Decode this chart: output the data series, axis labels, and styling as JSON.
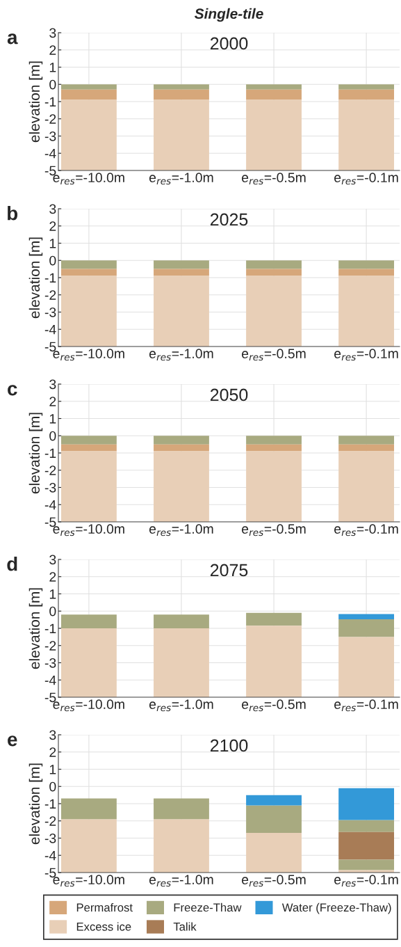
{
  "chart_data": [
    {
      "type": "bar",
      "title": "Single-tile",
      "subtitle": "2000",
      "annotations": [
        "a"
      ],
      "ylabel": "elevation [m]",
      "categories": [
        "e$_{res}$=-10.0m",
        "e$_{res}$=-1.0m",
        "e$_{res}$=-0.5m",
        "e$_{res}$=-0.1m"
      ],
      "ylim": [
        -5,
        3
      ],
      "yticks": [
        -5,
        -4,
        -3,
        -2,
        -1,
        0,
        1,
        2,
        3
      ],
      "grid": true,
      "series": [
        {
          "color": "#a8aa80",
          "base": [
            0,
            0,
            0,
            0
          ],
          "values": [
            -0.3,
            -0.3,
            -0.3,
            -0.3
          ]
        },
        {
          "color": "#d6a77a",
          "base": [
            -0.3,
            -0.3,
            -0.3,
            -0.3
          ],
          "values": [
            -0.6,
            -0.6,
            -0.6,
            -0.6
          ]
        },
        {
          "color": "#e8cfb7",
          "base": [
            -0.9,
            -0.9,
            -0.9,
            -0.9
          ],
          "values": [
            -4.1,
            -4.1,
            -4.1,
            -4.1
          ]
        }
      ]
    },
    {
      "type": "bar",
      "subtitle": "2025",
      "annotations": [
        "b"
      ],
      "ylabel": "elevation [m]",
      "categories": [
        "e$_{res}$=-10.0m",
        "e$_{res}$=-1.0m",
        "e$_{res}$=-0.5m",
        "e$_{res}$=-0.1m"
      ],
      "ylim": [
        -5,
        3
      ],
      "yticks": [
        -5,
        -4,
        -3,
        -2,
        -1,
        0,
        1,
        2,
        3
      ],
      "grid": true,
      "series": [
        {
          "color": "#a8aa80",
          "base": [
            0,
            0,
            0,
            0
          ],
          "values": [
            -0.5,
            -0.5,
            -0.5,
            -0.5
          ]
        },
        {
          "color": "#d6a77a",
          "base": [
            -0.5,
            -0.5,
            -0.5,
            -0.5
          ],
          "values": [
            -0.4,
            -0.4,
            -0.4,
            -0.4
          ]
        },
        {
          "color": "#e8cfb7",
          "base": [
            -0.9,
            -0.9,
            -0.9,
            -0.9
          ],
          "values": [
            -4.1,
            -4.1,
            -4.1,
            -4.1
          ]
        }
      ]
    },
    {
      "type": "bar",
      "subtitle": "2050",
      "annotations": [
        "c"
      ],
      "ylabel": "elevation [m]",
      "categories": [
        "e$_{res}$=-10.0m",
        "e$_{res}$=-1.0m",
        "e$_{res}$=-0.5m",
        "e$_{res}$=-0.1m"
      ],
      "ylim": [
        -5,
        3
      ],
      "yticks": [
        -5,
        -4,
        -3,
        -2,
        -1,
        0,
        1,
        2,
        3
      ],
      "grid": true,
      "series": [
        {
          "color": "#a8aa80",
          "base": [
            0,
            0,
            0,
            0
          ],
          "values": [
            -0.5,
            -0.5,
            -0.5,
            -0.5
          ]
        },
        {
          "color": "#d6a77a",
          "base": [
            -0.5,
            -0.5,
            -0.5,
            -0.5
          ],
          "values": [
            -0.4,
            -0.4,
            -0.4,
            -0.4
          ]
        },
        {
          "color": "#e8cfb7",
          "base": [
            -0.9,
            -0.9,
            -0.9,
            -0.9
          ],
          "values": [
            -4.1,
            -4.1,
            -4.1,
            -4.1
          ]
        }
      ]
    },
    {
      "type": "bar",
      "subtitle": "2075",
      "annotations": [
        "d"
      ],
      "ylabel": "elevation [m]",
      "categories": [
        "e$_{res}$=-10.0m",
        "e$_{res}$=-1.0m",
        "e$_{res}$=-0.5m",
        "e$_{res}$=-0.1m"
      ],
      "ylim": [
        -5,
        3
      ],
      "yticks": [
        -5,
        -4,
        -3,
        -2,
        -1,
        0,
        1,
        2,
        3
      ],
      "grid": true,
      "series": [
        {
          "color": "#a8aa80",
          "base": [
            -0.2,
            -0.2,
            -0.1,
            -0.47
          ],
          "values": [
            -0.8,
            -0.8,
            -0.75,
            -1.03
          ]
        },
        {
          "color": "#e8cfb7",
          "base": [
            -1.0,
            -1.0,
            -0.85,
            -1.5
          ],
          "values": [
            -4.0,
            -4.0,
            -4.15,
            -3.5
          ]
        },
        {
          "color": "#3399d8",
          "base": [
            null,
            null,
            null,
            -0.17
          ],
          "values": [
            null,
            null,
            null,
            -0.3
          ]
        }
      ]
    },
    {
      "type": "bar",
      "subtitle": "2100",
      "annotations": [
        "e"
      ],
      "ylabel": "elevation [m]",
      "categories": [
        "e$_{res}$=-10.0m",
        "e$_{res}$=-1.0m",
        "e$_{res}$=-0.5m",
        "e$_{res}$=-0.1m"
      ],
      "ylim": [
        -5,
        3
      ],
      "yticks": [
        -5,
        -4,
        -3,
        -2,
        -1,
        0,
        1,
        2,
        3
      ],
      "grid": true,
      "legend": "bottom",
      "series": [
        {
          "name": "Permafrost",
          "color": "#d6a77a",
          "base": [
            null,
            null,
            null,
            null
          ],
          "values": [
            null,
            null,
            null,
            null
          ]
        },
        {
          "name": "Excess ice",
          "color": "#e8cfb7",
          "base": [
            -1.9,
            -1.9,
            -2.7,
            -4.85
          ],
          "values": [
            -3.1,
            -3.1,
            -2.3,
            -0.15
          ]
        },
        {
          "name": "Freeze-Thaw",
          "color": "#a8aa80",
          "base": [
            -0.7,
            -0.7,
            -1.1,
            -1.95
          ],
          "values": [
            -1.2,
            -1.2,
            -1.6,
            -0.7
          ]
        },
        {
          "name": "Talik",
          "color": "#a87c56",
          "base": [
            null,
            null,
            null,
            -2.65
          ],
          "values": [
            null,
            null,
            null,
            -1.6
          ]
        },
        {
          "name": "Water (Freeze-Thaw)",
          "color": "#3399d8",
          "base": [
            null,
            null,
            -0.5,
            -0.1
          ],
          "values": [
            null,
            null,
            -0.6,
            -1.85
          ]
        },
        {
          "color": "#a8aa80",
          "base": [
            null,
            null,
            null,
            -4.25
          ],
          "values": [
            null,
            null,
            null,
            -0.6
          ]
        }
      ]
    }
  ]
}
